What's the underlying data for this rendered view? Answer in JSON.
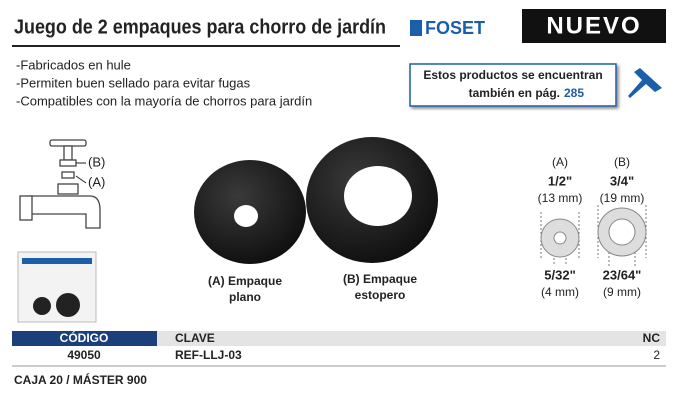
{
  "header": {
    "title": "Juego de 2 empaques para chorro de jardín",
    "brand": "FOSET",
    "badge": "NUEVO"
  },
  "features": [
    "-Fabricados en hule",
    "-Permiten buen sellado para evitar fugas",
    "-Compatibles con la mayoría de chorros para jardín"
  ],
  "note": {
    "line1": "Estos productos se encuentran",
    "line2": "también en pág.",
    "page": "285"
  },
  "diagram": {
    "label_b": "(B)",
    "label_a": "(A)"
  },
  "products": [
    {
      "line1": "(A) Empaque",
      "line2": "plano"
    },
    {
      "line1": "(B) Empaque",
      "line2": "estopero"
    }
  ],
  "specs": [
    {
      "label": "(A)",
      "outer": "1/2\"",
      "outer_mm": "(13 mm)",
      "inner": "5/32\"",
      "inner_mm": "(4 mm)"
    },
    {
      "label": "(B)",
      "outer": "3/4\"",
      "outer_mm": "(19 mm)",
      "inner": "23/64\"",
      "inner_mm": "(9 mm)"
    }
  ],
  "table": {
    "headers": [
      "CÓDIGO",
      "CLAVE",
      "NC"
    ],
    "rows": [
      [
        "49050",
        "REF-LLJ-03",
        "2"
      ]
    ]
  },
  "footer": "CAJA 20 / MÁSTER 900"
}
